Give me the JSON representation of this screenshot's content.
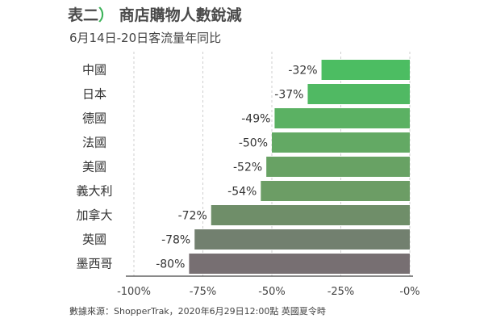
{
  "header": {
    "table_no": "表二",
    "paren": "）",
    "title": "商店購物人數銳減",
    "subtitle": "6月14日-20日客流量年同比"
  },
  "source": "數據來源：ShopperTrak，2020年6月29日12:00點 英國夏令時",
  "chart_data": {
    "type": "bar",
    "orientation": "horizontal",
    "title": "商店購物人數銳減",
    "subtitle": "6月14日-20日客流量年同比",
    "categories": [
      "中國",
      "日本",
      "德國",
      "法國",
      "美國",
      "義大利",
      "加拿大",
      "英國",
      "墨西哥"
    ],
    "values": [
      -32,
      -37,
      -49,
      -50,
      -52,
      -54,
      -72,
      -78,
      -80
    ],
    "value_labels": [
      "-32%",
      "-37%",
      "-49%",
      "-50%",
      "-52%",
      "-54%",
      "-72%",
      "-78%",
      "-80%"
    ],
    "xlim": [
      -100,
      0
    ],
    "xticks": [
      -100,
      -75,
      -50,
      -25,
      0
    ],
    "xtick_labels": [
      "-100%",
      "-75%",
      "-50%",
      "-25%",
      "-0%"
    ],
    "grid": "vertical dashed",
    "legend": "none",
    "colors": [
      "#4cbd62",
      "#50b963",
      "#5bb163",
      "#63a964",
      "#68a264",
      "#6c9d65",
      "#6f8e69",
      "#72806f",
      "#776f72"
    ]
  }
}
